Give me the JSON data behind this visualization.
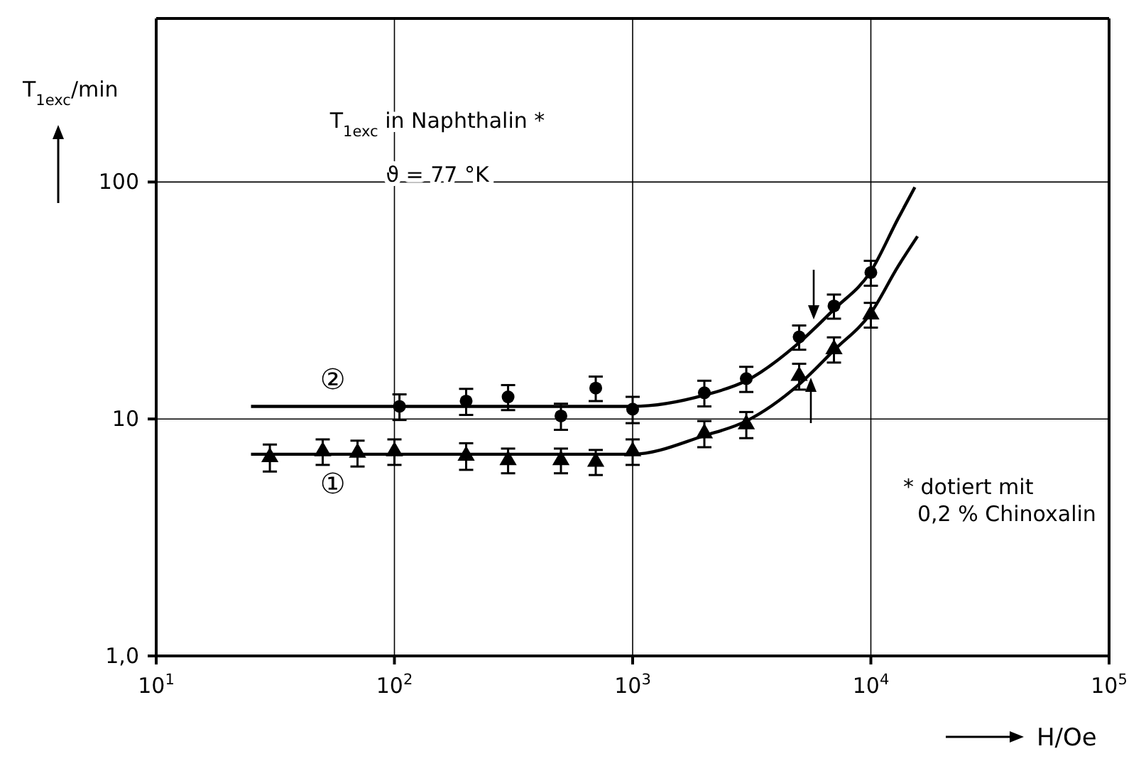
{
  "chart_data": {
    "type": "scatter",
    "xlabel": "H/Oe",
    "ylabel": "T$_{1exc}$/min",
    "annotations": [
      "T$_{1exc}$ in Naphthalin *",
      "ϑ = 77 °K",
      "* dotiert mit 0,2 % Chinoxalin"
    ],
    "log": "xy",
    "grid": true,
    "legend": false,
    "xlim": [
      10,
      100000
    ],
    "xticks": [
      {
        "value": 10,
        "label": "10$^{1}$"
      },
      {
        "value": 100,
        "label": "10$^{2}$"
      },
      {
        "value": 1000,
        "label": "10$^{3}$"
      },
      {
        "value": 10000,
        "label": "10$^{4}$"
      },
      {
        "value": 100000,
        "label": "10$^{5}$"
      }
    ],
    "ylim": [
      1,
      490
    ],
    "yticks": [
      {
        "value": 1,
        "label": "1,0"
      },
      10,
      100
    ],
    "series": [
      {
        "type": "line",
        "name": "②",
        "color": "#000000",
        "marker": "none",
        "x": [
          25,
          1000,
          2000,
          3000,
          5000,
          7000,
          10000,
          13000,
          15300
        ],
        "values": [
          11.3,
          11.3,
          12.6,
          14.5,
          21,
          29,
          42,
          70,
          95
        ]
      },
      {
        "color": "#000000",
        "marker": "circle",
        "x": [
          105,
          200,
          300,
          500,
          700,
          1000,
          2000,
          3000,
          5000,
          7000,
          10000
        ],
        "values": [
          11.3,
          11.9,
          12.4,
          10.3,
          13.5,
          11.0,
          12.9,
          14.8,
          22.2,
          30,
          41.5
        ],
        "errors": [
          1.4,
          1.5,
          1.5,
          1.3,
          1.6,
          1.4,
          1.6,
          1.8,
          2.6,
          3.5,
          5
        ]
      },
      {
        "type": "line",
        "name": "①",
        "color": "#000000",
        "marker": "none",
        "x": [
          25,
          1000,
          2000,
          3000,
          5000,
          7000,
          10000,
          13000,
          15700
        ],
        "values": [
          7.1,
          7.1,
          8.5,
          9.8,
          14,
          19.5,
          28,
          44,
          59
        ]
      },
      {
        "color": "#000000",
        "marker": "triangle",
        "x": [
          30,
          50,
          70,
          100,
          200,
          300,
          500,
          700,
          1000,
          2000,
          3000,
          5000,
          7000,
          10000
        ],
        "values": [
          6.9,
          7.3,
          7.2,
          7.3,
          7.0,
          6.7,
          6.7,
          6.6,
          7.3,
          8.7,
          9.5,
          15.2,
          19.7,
          27.6
        ],
        "errors": [
          0.9,
          0.9,
          0.9,
          0.9,
          0.9,
          0.8,
          0.8,
          0.8,
          0.9,
          1.1,
          1.2,
          1.9,
          2.4,
          3.3
        ]
      }
    ]
  }
}
